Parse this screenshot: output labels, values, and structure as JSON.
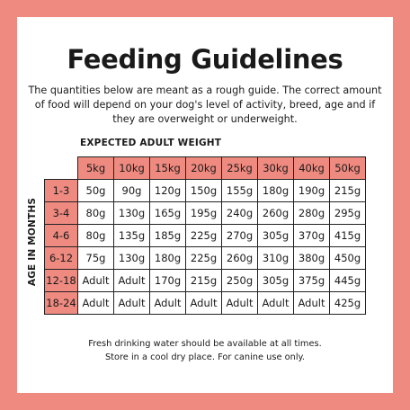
{
  "title": "Feeding Guidelines",
  "intro": "The quantities below are meant as a rough guide. The correct amount of food will depend on your dog's level of activity, breed, age and if they are overweight or underweight.",
  "weight_heading": "EXPECTED ADULT WEIGHT",
  "age_heading": "AGE IN MONTHS",
  "weights": [
    "5kg",
    "10kg",
    "15kg",
    "20kg",
    "25kg",
    "30kg",
    "40kg",
    "50kg"
  ],
  "rows": [
    {
      "age": "1-3",
      "values": [
        "50g",
        "90g",
        "120g",
        "150g",
        "155g",
        "180g",
        "190g",
        "215g"
      ]
    },
    {
      "age": "3-4",
      "values": [
        "80g",
        "130g",
        "165g",
        "195g",
        "240g",
        "260g",
        "280g",
        "295g"
      ]
    },
    {
      "age": "4-6",
      "values": [
        "80g",
        "135g",
        "185g",
        "225g",
        "270g",
        "305g",
        "370g",
        "415g"
      ]
    },
    {
      "age": "6-12",
      "values": [
        "75g",
        "130g",
        "180g",
        "225g",
        "260g",
        "310g",
        "380g",
        "450g"
      ]
    },
    {
      "age": "12-18",
      "values": [
        "Adult",
        "Adult",
        "170g",
        "215g",
        "250g",
        "305g",
        "375g",
        "445g"
      ]
    },
    {
      "age": "18-24",
      "values": [
        "Adult",
        "Adult",
        "Adult",
        "Adult",
        "Adult",
        "Adult",
        "Adult",
        "425g"
      ]
    }
  ],
  "footer": {
    "line1": "Fresh drinking water should be available at all times.",
    "line2": "Store in a cool dry place. For canine use only."
  },
  "colors": {
    "background": "#ee8a80",
    "header_cell": "#ee8a80",
    "card": "#ffffff",
    "text": "#1a1a1a"
  }
}
